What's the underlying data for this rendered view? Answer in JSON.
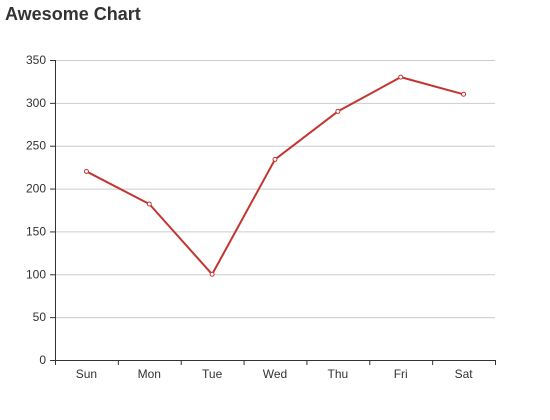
{
  "colors": {
    "line": "#c23531",
    "grid": "#cccccc",
    "axis": "#333333"
  },
  "chart_data": {
    "type": "line",
    "title": "Awesome Chart",
    "categories": [
      "Sun",
      "Mon",
      "Tue",
      "Wed",
      "Thu",
      "Fri",
      "Sat"
    ],
    "series": [
      {
        "values": [
          220,
          182,
          100,
          234,
          290,
          330,
          310
        ]
      }
    ],
    "ylim": [
      0,
      350
    ],
    "yticks": [
      0,
      50,
      100,
      150,
      200,
      250,
      300,
      350
    ],
    "grid": "horizontal",
    "legend": "none"
  }
}
